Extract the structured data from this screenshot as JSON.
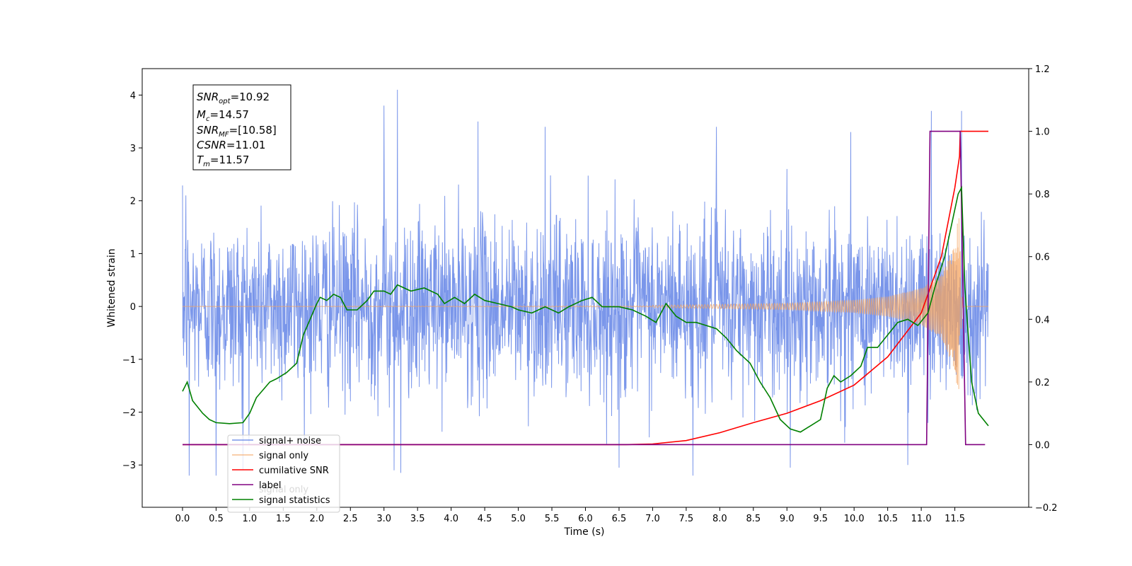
{
  "chart_data": {
    "type": "line",
    "xlabel": "Time (s)",
    "ylabel_left": "Whitened strain",
    "xlim": [
      -0.6,
      12.6
    ],
    "ylim_left": [
      -3.8,
      4.5
    ],
    "ylim_right": [
      -0.2,
      1.2
    ],
    "x_ticks": [
      0.0,
      0.5,
      1.0,
      1.5,
      2.0,
      2.5,
      3.0,
      3.5,
      4.0,
      4.5,
      5.0,
      5.5,
      6.0,
      6.5,
      7.0,
      7.5,
      8.0,
      8.5,
      9.0,
      9.5,
      10.0,
      10.5,
      11.0,
      11.5
    ],
    "x_tick_labels": [
      "0.0",
      "0.5",
      "1.0",
      "1.5",
      "2.0",
      "2.5",
      "3.0",
      "3.5",
      "4.0",
      "4.5",
      "5.0",
      "5.5",
      "6.0",
      "6.5",
      "7.0",
      "7.5",
      "8.0",
      "8.5",
      "9.0",
      "9.5",
      "10.0",
      "10.5",
      "11.0",
      "11.5"
    ],
    "y_left_ticks": [
      -3,
      -2,
      -1,
      0,
      1,
      2,
      3,
      4
    ],
    "y_left_tick_labels": [
      "−3",
      "−2",
      "−1",
      "0",
      "1",
      "2",
      "3",
      "4"
    ],
    "y_right_ticks": [
      -0.2,
      0.0,
      0.2,
      0.4,
      0.6,
      0.8,
      1.0,
      1.2
    ],
    "y_right_tick_labels": [
      "−0.2",
      "0.0",
      "0.2",
      "0.4",
      "0.6",
      "0.8",
      "1.0",
      "1.2"
    ],
    "grid": false,
    "legend_placement": "lower-left",
    "series": [
      {
        "name": "signal+ noise",
        "axis": "left",
        "color": "#4169e1",
        "kind": "noise",
        "x_range": [
          0.0,
          12.0
        ],
        "approx_amplitude": 1.1,
        "peaks": [
          [
            0.05,
            2.1
          ],
          [
            0.1,
            -3.2
          ],
          [
            0.5,
            -3.2
          ],
          [
            0.9,
            -3.1
          ],
          [
            3.0,
            3.8
          ],
          [
            3.2,
            4.1
          ],
          [
            3.15,
            -3.1
          ],
          [
            3.25,
            -3.15
          ],
          [
            4.4,
            3.5
          ],
          [
            5.4,
            3.4
          ],
          [
            6.5,
            -3.05
          ],
          [
            7.6,
            -3.2
          ],
          [
            7.95,
            3.4
          ],
          [
            9.05,
            -3.05
          ],
          [
            9.95,
            3.3
          ],
          [
            10.8,
            -3.0
          ],
          [
            11.15,
            3.7
          ],
          [
            11.6,
            3.7
          ]
        ]
      },
      {
        "name": "signal only",
        "axis": "left",
        "color": "#f4a460",
        "kind": "chirp",
        "x_range": [
          0.0,
          12.0
        ],
        "merger_time": 11.57,
        "envelope_points": [
          [
            7.0,
            0.02
          ],
          [
            8.0,
            0.04
          ],
          [
            9.0,
            0.06
          ],
          [
            10.0,
            0.12
          ],
          [
            10.5,
            0.19
          ],
          [
            11.0,
            0.35
          ],
          [
            11.3,
            0.6
          ],
          [
            11.5,
            1.2
          ],
          [
            11.57,
            1.9
          ]
        ]
      },
      {
        "name": "cumilative SNR",
        "axis": "right",
        "color": "#ff0000",
        "points": [
          [
            0.0,
            0.0
          ],
          [
            6.6,
            0.0
          ],
          [
            7.0,
            0.002
          ],
          [
            7.5,
            0.013
          ],
          [
            8.0,
            0.038
          ],
          [
            8.5,
            0.07
          ],
          [
            9.0,
            0.1
          ],
          [
            9.5,
            0.14
          ],
          [
            10.0,
            0.19
          ],
          [
            10.5,
            0.28
          ],
          [
            11.0,
            0.42
          ],
          [
            11.3,
            0.6
          ],
          [
            11.5,
            0.82
          ],
          [
            11.57,
            0.92
          ],
          [
            11.58,
            1.0
          ],
          [
            12.0,
            1.0
          ]
        ]
      },
      {
        "name": "label",
        "axis": "right",
        "color": "#800080",
        "points": [
          [
            0.0,
            0.0
          ],
          [
            11.08,
            0.0
          ],
          [
            11.13,
            1.0
          ],
          [
            11.58,
            1.0
          ],
          [
            11.66,
            0.0
          ],
          [
            11.95,
            0.0
          ]
        ]
      },
      {
        "name": "signal statistics",
        "axis": "right",
        "color": "#008000",
        "points": [
          [
            0.0,
            0.17
          ],
          [
            0.07,
            0.2
          ],
          [
            0.15,
            0.14
          ],
          [
            0.3,
            0.1
          ],
          [
            0.4,
            0.08
          ],
          [
            0.5,
            0.07
          ],
          [
            0.7,
            0.067
          ],
          [
            0.9,
            0.07
          ],
          [
            1.0,
            0.1
          ],
          [
            1.1,
            0.15
          ],
          [
            1.3,
            0.2
          ],
          [
            1.4,
            0.21
          ],
          [
            1.55,
            0.23
          ],
          [
            1.7,
            0.26
          ],
          [
            1.8,
            0.35
          ],
          [
            1.9,
            0.4
          ],
          [
            2.0,
            0.45
          ],
          [
            2.05,
            0.47
          ],
          [
            2.15,
            0.46
          ],
          [
            2.25,
            0.48
          ],
          [
            2.35,
            0.47
          ],
          [
            2.45,
            0.43
          ],
          [
            2.6,
            0.43
          ],
          [
            2.75,
            0.46
          ],
          [
            2.85,
            0.49
          ],
          [
            3.0,
            0.49
          ],
          [
            3.1,
            0.48
          ],
          [
            3.2,
            0.51
          ],
          [
            3.4,
            0.49
          ],
          [
            3.6,
            0.5
          ],
          [
            3.8,
            0.48
          ],
          [
            3.9,
            0.45
          ],
          [
            4.05,
            0.47
          ],
          [
            4.2,
            0.45
          ],
          [
            4.35,
            0.48
          ],
          [
            4.5,
            0.46
          ],
          [
            4.7,
            0.45
          ],
          [
            4.9,
            0.44
          ],
          [
            5.0,
            0.43
          ],
          [
            5.2,
            0.42
          ],
          [
            5.4,
            0.44
          ],
          [
            5.6,
            0.42
          ],
          [
            5.75,
            0.44
          ],
          [
            5.95,
            0.46
          ],
          [
            6.1,
            0.47
          ],
          [
            6.25,
            0.44
          ],
          [
            6.5,
            0.44
          ],
          [
            6.7,
            0.43
          ],
          [
            6.9,
            0.41
          ],
          [
            7.05,
            0.39
          ],
          [
            7.2,
            0.45
          ],
          [
            7.35,
            0.41
          ],
          [
            7.5,
            0.39
          ],
          [
            7.65,
            0.39
          ],
          [
            7.8,
            0.38
          ],
          [
            7.95,
            0.37
          ],
          [
            8.1,
            0.34
          ],
          [
            8.25,
            0.3
          ],
          [
            8.45,
            0.26
          ],
          [
            8.6,
            0.2
          ],
          [
            8.75,
            0.15
          ],
          [
            8.9,
            0.08
          ],
          [
            9.05,
            0.05
          ],
          [
            9.2,
            0.04
          ],
          [
            9.35,
            0.06
          ],
          [
            9.5,
            0.08
          ],
          [
            9.6,
            0.18
          ],
          [
            9.7,
            0.22
          ],
          [
            9.8,
            0.2
          ],
          [
            9.95,
            0.22
          ],
          [
            10.1,
            0.25
          ],
          [
            10.2,
            0.31
          ],
          [
            10.35,
            0.31
          ],
          [
            10.5,
            0.35
          ],
          [
            10.65,
            0.39
          ],
          [
            10.8,
            0.4
          ],
          [
            10.95,
            0.38
          ],
          [
            11.1,
            0.42
          ],
          [
            11.2,
            0.5
          ],
          [
            11.35,
            0.6
          ],
          [
            11.45,
            0.7
          ],
          [
            11.55,
            0.8
          ],
          [
            11.6,
            0.82
          ],
          [
            11.65,
            0.5
          ],
          [
            11.75,
            0.2
          ],
          [
            11.85,
            0.1
          ],
          [
            12.0,
            0.06
          ]
        ]
      }
    ],
    "annotation_lines": [
      {
        "symbol": "SNR",
        "sub": "opt",
        "value": "=10.92"
      },
      {
        "symbol": "M",
        "sub": "c",
        "value": "=14.57"
      },
      {
        "symbol": "SNR",
        "sub": "MF",
        "value": "=[10.58]"
      },
      {
        "symbol": "CSNR",
        "sub": "",
        "value": "=11.01"
      },
      {
        "symbol": "T",
        "sub": "m",
        "value": "=11.57"
      }
    ],
    "legend_overlap_text": "signal only"
  }
}
